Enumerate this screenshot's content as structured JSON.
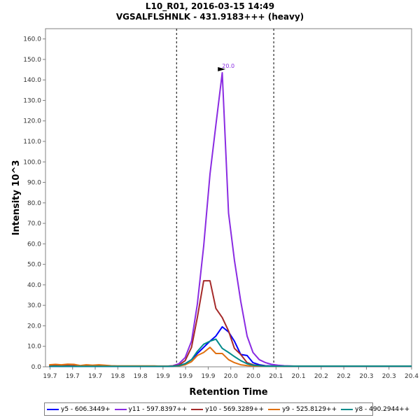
{
  "chart_data": {
    "type": "line",
    "title": "L10_R01, 2016-03-15 14:49",
    "subtitle": "VGSALFLSHNLK - 431.9183+++ (heavy)",
    "xlabel": "Retention Time",
    "ylabel": "Intensity 10^3",
    "xlim": [
      19.64,
      20.45
    ],
    "ylim": [
      0,
      165
    ],
    "x_ticks": [
      "19.7",
      "19.7",
      "19.7",
      "19.8",
      "19.8",
      "19.9",
      "19.9",
      "19.9",
      "20.0",
      "20.0",
      "20.1",
      "20.1",
      "20.2",
      "20.2",
      "20.3",
      "20.3",
      "20.4"
    ],
    "y_ticks": [
      "0.0",
      "10.0",
      "20.0",
      "30.0",
      "40.0",
      "50.0",
      "60.0",
      "70.0",
      "80.0",
      "90.0",
      "100.0",
      "110.0",
      "120.0",
      "130.0",
      "140.0",
      "150.0",
      "160.0"
    ],
    "boundary_lines_x": [
      19.93,
      20.145
    ],
    "peak_annotation": {
      "label": "20.0",
      "x": 20.043,
      "y": 143.5
    },
    "x": [
      19.648,
      19.662,
      19.675,
      19.689,
      19.703,
      19.717,
      19.73,
      19.744,
      19.758,
      19.771,
      19.785,
      19.799,
      19.812,
      19.826,
      19.84,
      19.853,
      19.867,
      19.881,
      19.894,
      19.908,
      19.922,
      19.935,
      19.949,
      19.963,
      19.976,
      19.99,
      20.004,
      20.017,
      20.031,
      20.045,
      20.058,
      20.072,
      20.086,
      20.099,
      20.113,
      20.127,
      20.14,
      20.154,
      20.168,
      20.181,
      20.195,
      20.209,
      20.222,
      20.236,
      20.25,
      20.263,
      20.277,
      20.291,
      20.304,
      20.318,
      20.332,
      20.345,
      20.359,
      20.373,
      20.386,
      20.4,
      20.414,
      20.427,
      20.441,
      20.45
    ],
    "series": [
      {
        "name": "y5 - 606.3449+",
        "color": "#0000ff",
        "values": [
          0.2,
          0.3,
          0.2,
          0.3,
          0.2,
          0.2,
          0.3,
          0.2,
          0.2,
          0.2,
          0.2,
          0.2,
          0.2,
          0.2,
          0.2,
          0.2,
          0.2,
          0.2,
          0.2,
          0.2,
          0.3,
          0.5,
          1.5,
          3.5,
          6.5,
          9.5,
          12.5,
          15,
          19.5,
          17,
          12.5,
          6,
          5.5,
          2,
          1,
          0.5,
          0.4,
          0.4,
          0.3,
          0.3,
          0.3,
          0.3,
          0.3,
          0.3,
          0.3,
          0.3,
          0.3,
          0.3,
          0.3,
          0.3,
          0.3,
          0.3,
          0.3,
          0.3,
          0.3,
          0.3,
          0.3,
          0.3,
          0.3,
          0.3
        ]
      },
      {
        "name": "y11 - 597.8397++",
        "color": "#8a2be2",
        "values": [
          0.3,
          0.4,
          0.3,
          0.4,
          0.3,
          0.3,
          0.4,
          0.3,
          0.3,
          0.3,
          0.3,
          0.3,
          0.3,
          0.3,
          0.3,
          0.3,
          0.3,
          0.3,
          0.3,
          0.3,
          0.5,
          1.5,
          4.5,
          12.5,
          30.5,
          59,
          94,
          118,
          143.5,
          75,
          52,
          32,
          15,
          7,
          3.5,
          2,
          1.2,
          0.8,
          0.5,
          0.4,
          0.3,
          0.3,
          0.3,
          0.3,
          0.3,
          0.3,
          0.3,
          0.3,
          0.3,
          0.3,
          0.3,
          0.3,
          0.3,
          0.3,
          0.3,
          0.3,
          0.3,
          0.3,
          0.3,
          0.3
        ]
      },
      {
        "name": "y10 - 569.3289++",
        "color": "#a52a2a",
        "values": [
          0.5,
          0.6,
          0.5,
          0.7,
          0.5,
          0.4,
          0.5,
          0.4,
          0.5,
          0.4,
          0.3,
          0.3,
          0.3,
          0.3,
          0.3,
          0.3,
          0.3,
          0.3,
          0.3,
          0.3,
          0.4,
          0.8,
          3,
          9.5,
          24,
          42,
          42,
          28.5,
          24,
          17.5,
          9,
          6,
          2,
          1,
          0.6,
          0.4,
          0.3,
          0.3,
          0.3,
          0.3,
          0.3,
          0.3,
          0.3,
          0.3,
          0.3,
          0.3,
          0.3,
          0.3,
          0.3,
          0.3,
          0.3,
          0.3,
          0.3,
          0.3,
          0.3,
          0.3,
          0.3,
          0.3,
          0.3,
          0.3
        ]
      },
      {
        "name": "y9 - 525.8129++",
        "color": "#e07010",
        "values": [
          1,
          1.2,
          1,
          1.3,
          1.2,
          0.6,
          1,
          0.8,
          1,
          0.8,
          0.5,
          0.4,
          0.4,
          0.4,
          0.4,
          0.4,
          0.4,
          0.4,
          0.3,
          0.3,
          0.3,
          0.4,
          1,
          2.5,
          5.5,
          7,
          9.5,
          6.5,
          6.5,
          3.5,
          2,
          1,
          0.6,
          0.4,
          0.3,
          0.3,
          0.3,
          0.3,
          0.3,
          0.3,
          0.3,
          0.3,
          0.3,
          0.3,
          0.3,
          0.3,
          0.3,
          0.3,
          0.3,
          0.3,
          0.3,
          0.3,
          0.3,
          0.3,
          0.3,
          0.3,
          0.3,
          0.3,
          0.3,
          0.3
        ]
      },
      {
        "name": "y8 - 490.2944++",
        "color": "#008b8b",
        "values": [
          0.2,
          0.3,
          0.2,
          0.3,
          0.2,
          0.2,
          0.2,
          0.2,
          0.2,
          0.2,
          0.2,
          0.2,
          0.2,
          0.2,
          0.2,
          0.2,
          0.2,
          0.2,
          0.2,
          0.2,
          0.3,
          0.5,
          1.5,
          3.5,
          7.5,
          11,
          12.5,
          13.5,
          9,
          7,
          5,
          3,
          1.5,
          0.8,
          0.5,
          0.3,
          0.3,
          0.3,
          0.3,
          0.3,
          0.3,
          0.3,
          0.3,
          0.3,
          0.3,
          0.3,
          0.3,
          0.3,
          0.3,
          0.3,
          0.3,
          0.3,
          0.3,
          0.3,
          0.3,
          0.3,
          0.3,
          0.3,
          0.3,
          0.3
        ]
      }
    ],
    "legend_position": "bottom",
    "grid": false
  }
}
